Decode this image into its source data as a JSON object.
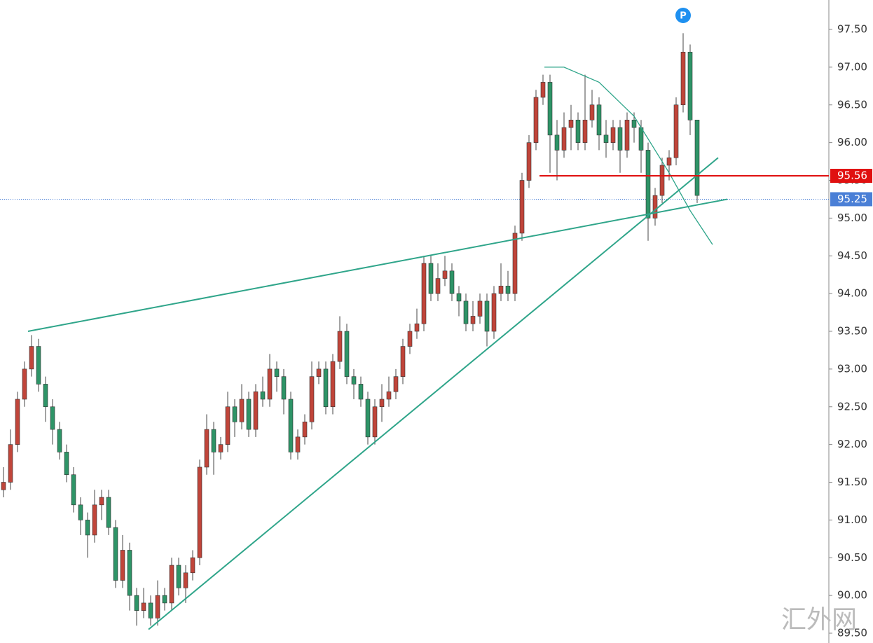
{
  "chart_data": {
    "type": "candlestick",
    "up_color": "#c0453a",
    "down_color": "#2e9467",
    "open": [
      91.4,
      91.5,
      92.0,
      92.6,
      93.0,
      93.3,
      92.8,
      92.5,
      92.2,
      91.9,
      91.6,
      91.2,
      91.0,
      90.8,
      91.2,
      91.3,
      90.9,
      90.2,
      90.6,
      90.0,
      89.8,
      89.9,
      89.7,
      90.0,
      89.9,
      90.4,
      90.1,
      90.3,
      90.5,
      91.7,
      92.2,
      91.9,
      92.0,
      92.5,
      92.3,
      92.6,
      92.2,
      92.7,
      92.6,
      93.0,
      92.9,
      92.6,
      91.9,
      92.1,
      92.3,
      92.9,
      93.0,
      92.5,
      93.1,
      93.5,
      92.9,
      92.8,
      92.6,
      92.1,
      92.5,
      92.6,
      92.7,
      92.9,
      93.3,
      93.5,
      93.6,
      94.4,
      94.0,
      94.2,
      94.3,
      94.0,
      93.9,
      93.6,
      93.7,
      93.9,
      93.5,
      94.0,
      94.1,
      94.0,
      94.8,
      95.5,
      96.0,
      96.6,
      96.8,
      96.1,
      95.9,
      96.2,
      96.3,
      96.0,
      96.3,
      96.5,
      96.1,
      96.0,
      96.2,
      95.9,
      96.3,
      96.2,
      95.9,
      95.0,
      95.3,
      95.7,
      95.8,
      96.5,
      97.2,
      96.3
    ],
    "high": [
      91.7,
      92.2,
      92.7,
      93.1,
      93.45,
      93.4,
      92.9,
      92.6,
      92.3,
      92.0,
      91.7,
      91.3,
      91.1,
      91.4,
      91.4,
      91.4,
      91.0,
      90.8,
      90.7,
      90.1,
      90.1,
      90.0,
      90.2,
      90.1,
      90.5,
      90.5,
      90.4,
      90.6,
      91.8,
      92.4,
      92.3,
      92.1,
      92.7,
      92.6,
      92.8,
      92.7,
      92.8,
      92.9,
      93.2,
      93.1,
      93.0,
      92.7,
      92.2,
      92.4,
      93.1,
      93.1,
      93.1,
      93.2,
      93.7,
      93.6,
      93.0,
      92.9,
      92.7,
      92.6,
      92.8,
      92.9,
      93.0,
      93.4,
      93.6,
      93.8,
      94.5,
      94.5,
      94.4,
      94.5,
      94.4,
      94.1,
      94.0,
      93.9,
      94.0,
      94.0,
      94.1,
      94.4,
      94.3,
      94.9,
      95.6,
      96.1,
      96.7,
      96.9,
      96.9,
      96.3,
      96.4,
      96.5,
      96.4,
      96.9,
      96.7,
      96.6,
      96.3,
      96.3,
      96.3,
      96.4,
      96.4,
      96.3,
      96.0,
      95.4,
      95.8,
      95.9,
      96.6,
      97.45,
      97.3,
      96.3
    ],
    "low": [
      91.3,
      91.4,
      91.9,
      92.5,
      92.9,
      92.7,
      92.3,
      92.0,
      91.8,
      91.5,
      91.1,
      90.8,
      90.5,
      90.7,
      91.0,
      90.8,
      90.1,
      90.1,
      89.8,
      89.6,
      89.7,
      89.6,
      89.6,
      89.8,
      89.8,
      90.0,
      89.9,
      90.2,
      90.4,
      91.6,
      91.6,
      91.8,
      91.9,
      92.1,
      92.2,
      92.1,
      92.1,
      92.5,
      92.5,
      92.7,
      92.4,
      91.8,
      91.8,
      92.0,
      92.2,
      92.8,
      92.4,
      92.4,
      93.0,
      92.8,
      92.6,
      92.5,
      92.0,
      92.0,
      92.3,
      92.5,
      92.6,
      92.8,
      93.2,
      93.4,
      93.5,
      93.9,
      93.9,
      94.1,
      93.9,
      93.7,
      93.5,
      93.5,
      93.6,
      93.3,
      93.4,
      93.9,
      93.9,
      93.9,
      94.7,
      95.4,
      95.9,
      96.5,
      95.6,
      95.5,
      95.8,
      95.9,
      95.9,
      95.9,
      96.2,
      95.9,
      95.8,
      95.9,
      95.6,
      95.8,
      96.0,
      95.6,
      94.7,
      94.9,
      95.2,
      95.5,
      95.7,
      96.4,
      96.1,
      95.2
    ],
    "close": [
      91.5,
      92.0,
      92.6,
      93.0,
      93.3,
      92.8,
      92.5,
      92.2,
      91.9,
      91.6,
      91.2,
      91.0,
      90.8,
      91.2,
      91.3,
      90.9,
      90.2,
      90.6,
      90.0,
      89.8,
      89.9,
      89.7,
      90.0,
      89.9,
      90.4,
      90.1,
      90.3,
      90.5,
      91.7,
      92.2,
      91.9,
      92.0,
      92.5,
      92.3,
      92.6,
      92.2,
      92.7,
      92.6,
      93.0,
      92.9,
      92.6,
      91.9,
      92.1,
      92.3,
      92.9,
      93.0,
      92.5,
      93.1,
      93.5,
      92.9,
      92.8,
      92.6,
      92.1,
      92.5,
      92.6,
      92.7,
      92.9,
      93.3,
      93.5,
      93.6,
      94.4,
      94.0,
      94.2,
      94.3,
      94.0,
      93.9,
      93.6,
      93.7,
      93.9,
      93.5,
      94.0,
      94.1,
      94.0,
      94.8,
      95.5,
      96.0,
      96.6,
      96.8,
      96.1,
      95.9,
      96.2,
      96.3,
      96.0,
      96.3,
      96.5,
      96.1,
      96.0,
      96.2,
      95.9,
      96.3,
      96.2,
      95.9,
      95.0,
      95.3,
      95.7,
      95.8,
      96.5,
      97.2,
      96.3,
      95.3
    ],
    "ylim": [
      89.5,
      97.5
    ],
    "yticks": [
      {
        "value": 89.5,
        "label": "89.50"
      },
      {
        "value": 90,
        "label": "90.00"
      },
      {
        "value": 90.5,
        "label": "90.50"
      },
      {
        "value": 91,
        "label": "91.00"
      },
      {
        "value": 91.5,
        "label": "91.50"
      },
      {
        "value": 92,
        "label": "92.00"
      },
      {
        "value": 92.5,
        "label": "92.50"
      },
      {
        "value": 93,
        "label": "93.00"
      },
      {
        "value": 93.5,
        "label": "93.50"
      },
      {
        "value": 94,
        "label": "94.00"
      },
      {
        "value": 94.5,
        "label": "94.50"
      },
      {
        "value": 95,
        "label": "95.00"
      },
      {
        "value": 95.5,
        "label": "95.50"
      },
      {
        "value": 96,
        "label": "96.00"
      },
      {
        "value": 96.5,
        "label": "96.50"
      },
      {
        "value": 97,
        "label": "97.00"
      },
      {
        "value": 97.5,
        "label": "97.50"
      }
    ],
    "trendlines": [
      {
        "from": [
          3.5,
          93.5
        ],
        "to": [
          103.3,
          95.25
        ],
        "color": "#2fa58a"
      },
      {
        "from": [
          20.7,
          89.55
        ],
        "to": [
          102,
          95.8
        ],
        "color": "#2fa58a"
      }
    ],
    "arc": {
      "color": "#2fa58a",
      "points": [
        [
          77.2,
          97.0
        ],
        [
          80,
          97.0
        ],
        [
          85,
          96.8
        ],
        [
          90,
          96.35
        ],
        [
          95,
          95.6
        ],
        [
          98,
          95.1
        ],
        [
          101.2,
          94.65
        ]
      ]
    },
    "resistance": {
      "from": 76.5,
      "price": {
        "value": 95.56,
        "label": "95.56"
      },
      "color": "#e01010"
    },
    "last_price": {
      "price": {
        "value": 95.25,
        "label": "95.25"
      },
      "color": "#4a7fd6"
    },
    "marker": {
      "label": "P",
      "at": 97,
      "color": "#1e90f0"
    },
    "watermark": "汇外网"
  }
}
